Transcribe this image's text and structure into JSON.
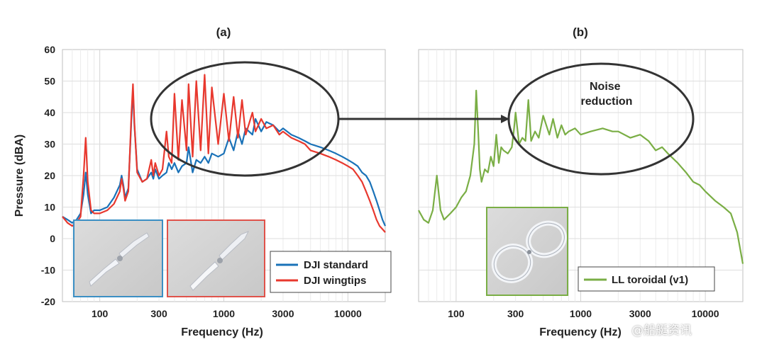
{
  "figure": {
    "watermark": "@船艇资讯",
    "colors": {
      "blue": "#1a72b8",
      "red": "#e8382e",
      "green": "#7aae45",
      "inset_blue": "#3b8fc4",
      "inset_red": "#e0524a",
      "inset_green": "#7aae45"
    }
  },
  "chart_data": [
    {
      "type": "line",
      "title": "(a)",
      "xlabel": "Frequency (Hz)",
      "ylabel": "Pressure (dBA)",
      "xscale": "log",
      "xlim": [
        50,
        20000
      ],
      "ylim": [
        -20,
        60
      ],
      "xticks": [
        100,
        300,
        1000,
        3000,
        10000
      ],
      "xtick_labels": [
        "100",
        "300",
        "1000",
        "3000",
        "10000"
      ],
      "yticks": [
        -20,
        -10,
        0,
        10,
        20,
        30,
        40,
        50,
        60
      ],
      "ytick_labels": [
        "-20",
        "-10",
        "0",
        "10",
        "20",
        "30",
        "40",
        "50",
        "60"
      ],
      "grid": true,
      "legend_position": "bottom-right",
      "annotation": "ellipse highlighting tonal peaks 400–4500 Hz",
      "series": [
        {
          "name": "DJI standard",
          "color": "#1a72b8",
          "x": [
            50,
            55,
            60,
            65,
            70,
            74,
            77,
            80,
            85,
            90,
            100,
            115,
            130,
            145,
            150,
            155,
            160,
            170,
            180,
            185,
            190,
            200,
            220,
            240,
            260,
            270,
            280,
            300,
            320,
            345,
            360,
            380,
            400,
            430,
            460,
            500,
            520,
            560,
            600,
            650,
            700,
            750,
            800,
            900,
            1000,
            1100,
            1200,
            1300,
            1400,
            1500,
            1700,
            1800,
            2000,
            2200,
            2500,
            2800,
            3000,
            3500,
            4000,
            4500,
            5000,
            6000,
            7000,
            8000,
            9000,
            10000,
            11000,
            12000,
            13000,
            14000,
            15000,
            16000,
            17000,
            18000,
            19000,
            20000
          ],
          "y": [
            7,
            6,
            5,
            6,
            8,
            14,
            21,
            14,
            8,
            9,
            9,
            10,
            13,
            17,
            20,
            17,
            13,
            16,
            38,
            47,
            36,
            22,
            18,
            19,
            21,
            19,
            22,
            19,
            20,
            21,
            24,
            22,
            24,
            21,
            23,
            24,
            29,
            21,
            25,
            24,
            26,
            24,
            27,
            26,
            27,
            32,
            28,
            34,
            30,
            35,
            33,
            38,
            34,
            37,
            36,
            34,
            35,
            33,
            32,
            31,
            30,
            29,
            28,
            27,
            26,
            25,
            24,
            23,
            21,
            20,
            18,
            15,
            12,
            9,
            6,
            4
          ]
        },
        {
          "name": "DJI wingtips",
          "color": "#e8382e",
          "x": [
            50,
            55,
            60,
            65,
            70,
            74,
            77,
            80,
            85,
            90,
            100,
            115,
            130,
            145,
            150,
            155,
            160,
            170,
            180,
            185,
            190,
            200,
            220,
            240,
            260,
            270,
            280,
            300,
            320,
            345,
            360,
            380,
            400,
            430,
            460,
            500,
            520,
            560,
            600,
            650,
            700,
            750,
            800,
            900,
            1000,
            1100,
            1200,
            1300,
            1400,
            1500,
            1700,
            1800,
            2000,
            2200,
            2500,
            2800,
            3000,
            3500,
            4000,
            4500,
            5000,
            6000,
            7000,
            8000,
            9000,
            10000,
            11000,
            12000,
            13000,
            14000,
            15000,
            16000,
            17000,
            18000,
            19000,
            20000
          ],
          "y": [
            7,
            5,
            4,
            5,
            7,
            20,
            32,
            18,
            9,
            8,
            8,
            9,
            11,
            15,
            19,
            16,
            12,
            15,
            40,
            49,
            37,
            21,
            18,
            19,
            25,
            20,
            24,
            20,
            22,
            34,
            26,
            24,
            46,
            25,
            44,
            28,
            49,
            26,
            50,
            28,
            52,
            27,
            48,
            30,
            46,
            31,
            45,
            32,
            44,
            33,
            40,
            34,
            38,
            35,
            36,
            33,
            34,
            32,
            31,
            30,
            28,
            27,
            26,
            25,
            24,
            23,
            22,
            20,
            18,
            15,
            12,
            9,
            6,
            4,
            3,
            2
          ]
        }
      ]
    },
    {
      "type": "line",
      "title": "(b)",
      "xlabel": "Frequency (Hz)",
      "ylabel": "",
      "xscale": "log",
      "xlim": [
        50,
        20000
      ],
      "ylim": [
        -20,
        60
      ],
      "xticks": [
        100,
        300,
        1000,
        3000,
        10000
      ],
      "xtick_labels": [
        "100",
        "300",
        "1000",
        "3000",
        "10000"
      ],
      "grid": true,
      "legend_position": "bottom-right",
      "annotation": "Noise reduction",
      "series": [
        {
          "name": "LL toroidal (v1)",
          "color": "#7aae45",
          "x": [
            50,
            55,
            60,
            65,
            70,
            75,
            80,
            90,
            100,
            110,
            120,
            130,
            140,
            145,
            150,
            155,
            160,
            170,
            180,
            190,
            200,
            210,
            220,
            230,
            240,
            260,
            280,
            290,
            300,
            320,
            340,
            360,
            380,
            400,
            430,
            460,
            500,
            560,
            600,
            650,
            700,
            750,
            800,
            900,
            1000,
            1200,
            1500,
            1800,
            2000,
            2500,
            3000,
            3500,
            4000,
            4500,
            5000,
            6000,
            7000,
            8000,
            9000,
            10000,
            12000,
            14000,
            16000,
            18000,
            20000
          ],
          "y": [
            9,
            6,
            5,
            9,
            20,
            9,
            6,
            8,
            10,
            13,
            15,
            20,
            30,
            47,
            35,
            22,
            18,
            22,
            21,
            26,
            23,
            33,
            24,
            29,
            28,
            27,
            29,
            34,
            40,
            30,
            32,
            31,
            44,
            31,
            34,
            32,
            39,
            33,
            38,
            32,
            36,
            33,
            34,
            35,
            33,
            34,
            35,
            34,
            34,
            32,
            33,
            31,
            28,
            29,
            27,
            24,
            21,
            18,
            17,
            15,
            12,
            10,
            8,
            2,
            -8
          ]
        }
      ]
    }
  ]
}
